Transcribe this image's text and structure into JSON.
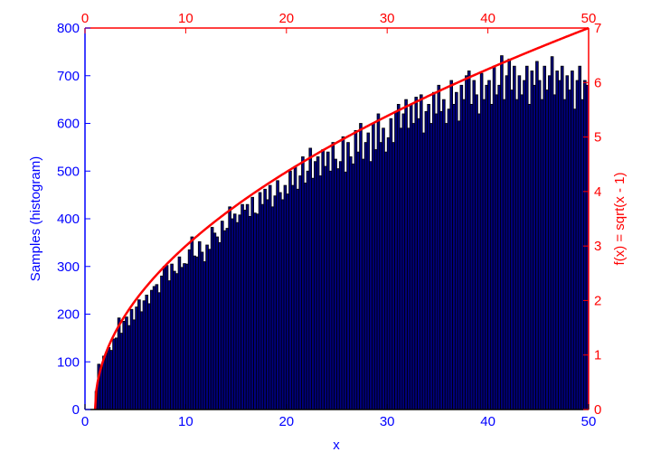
{
  "chart_data": {
    "type": "bar",
    "xlabel": "x",
    "ylabel_left": "Samples (histogram)",
    "ylabel_right": "f(x) = sqrt(x - 1)",
    "xlim": [
      0,
      50
    ],
    "ylim_left": [
      0,
      800
    ],
    "ylim_right": [
      0,
      7
    ],
    "x_ticks": [
      0,
      10,
      20,
      30,
      40,
      50
    ],
    "top_x_ticks": [
      0,
      10,
      20,
      30,
      40,
      50
    ],
    "y_left_ticks": [
      0,
      100,
      200,
      300,
      400,
      500,
      600,
      700,
      800
    ],
    "y_right_ticks": [
      0,
      1,
      2,
      3,
      4,
      5,
      6,
      7
    ],
    "grid": false,
    "colors": {
      "bars": "#000080",
      "bar_edge": "#000000",
      "curve": "#ff0000",
      "left_axis": "#0000ff",
      "right_axis": "#ff0000"
    },
    "histogram": {
      "bin_start": 1,
      "bin_width": 0.25,
      "counts": [
        38,
        95,
        88,
        112,
        118,
        130,
        124,
        148,
        150,
        192,
        160,
        185,
        194,
        176,
        210,
        188,
        215,
        230,
        205,
        228,
        240,
        222,
        250,
        258,
        262,
        245,
        280,
        300,
        302,
        270,
        305,
        290,
        285,
        320,
        298,
        306,
        305,
        335,
        362,
        322,
        320,
        352,
        330,
        310,
        345,
        336,
        382,
        370,
        362,
        350,
        395,
        375,
        380,
        425,
        400,
        410,
        392,
        408,
        430,
        418,
        430,
        405,
        445,
        412,
        410,
        455,
        430,
        462,
        440,
        470,
        425,
        448,
        480,
        455,
        440,
        470,
        452,
        500,
        470,
        510,
        462,
        490,
        530,
        475,
        500,
        548,
        485,
        520,
        530,
        490,
        545,
        510,
        540,
        500,
        560,
        525,
        505,
        520,
        572,
        498,
        560,
        530,
        515,
        585,
        540,
        600,
        525,
        560,
        580,
        520,
        600,
        545,
        620,
        560,
        590,
        540,
        570,
        610,
        560,
        625,
        640,
        590,
        620,
        650,
        590,
        640,
        600,
        655,
        610,
        660,
        580,
        625,
        640,
        600,
        665,
        620,
        680,
        625,
        650,
        600,
        630,
        690,
        640,
        665,
        605,
        680,
        650,
        700,
        710,
        640,
        690,
        660,
        620,
        705,
        650,
        680,
        690,
        640,
        720,
        660,
        680,
        742,
        650,
        700,
        735,
        670,
        720,
        650,
        700,
        660,
        690,
        720,
        640,
        710,
        680,
        730,
        690,
        650,
        720,
        670,
        700,
        740,
        660,
        710,
        690,
        720,
        650,
        700,
        670,
        710,
        630,
        690,
        720,
        650,
        690,
        680
      ]
    },
    "curve": {
      "function": "sqrt(x - 1)",
      "x_range": [
        1,
        50
      ],
      "axis": "right"
    }
  }
}
